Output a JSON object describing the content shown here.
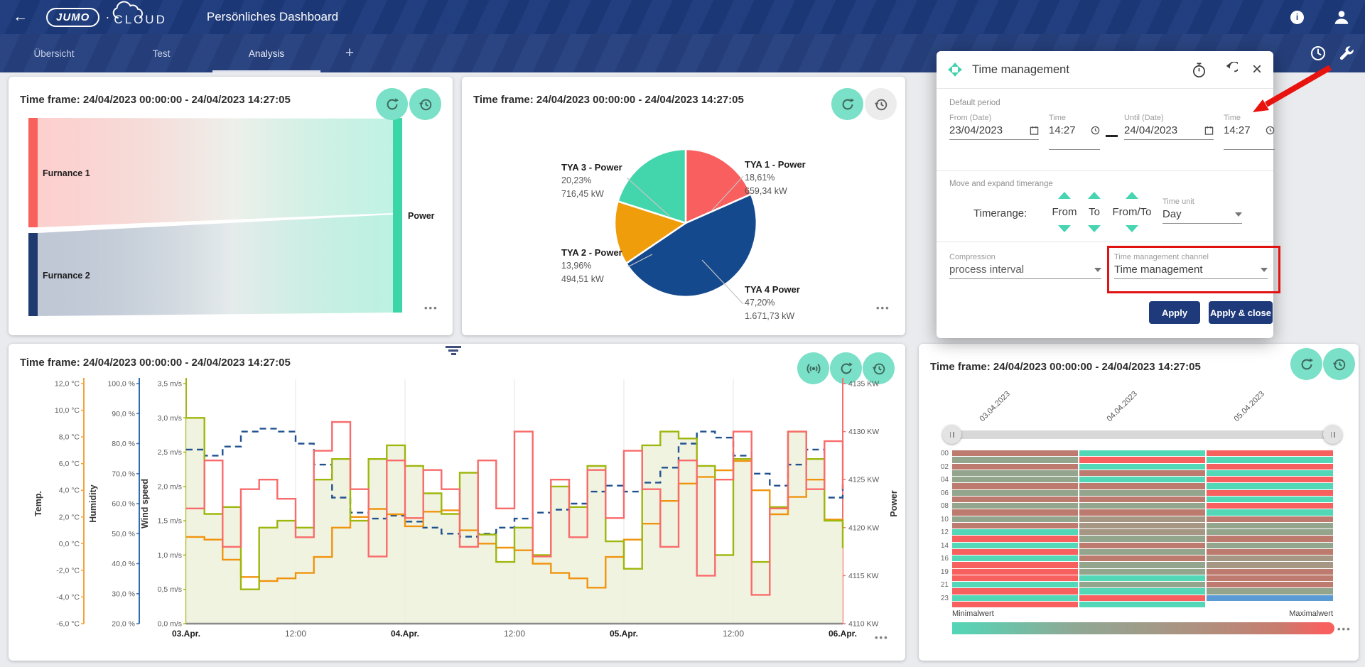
{
  "header": {
    "logo_primary": "JUMO",
    "logo_separator": "·",
    "logo_secondary": "CLOUD",
    "title": "Persönliches Dashboard",
    "icons": [
      "back-arrow-icon",
      "info-icon",
      "account-icon"
    ]
  },
  "tabbar": {
    "tabs": [
      {
        "label": "Übersicht",
        "active": false
      },
      {
        "label": "Test",
        "active": false
      },
      {
        "label": "Analysis",
        "active": true
      }
    ],
    "add_label": "+",
    "icons": [
      "clock-icon",
      "wrench-icon"
    ]
  },
  "cards": {
    "sankey": {
      "title": "Time frame: 24/04/2023 00:00:00 - 24/04/2023 14:27:05",
      "menu_label": "•••",
      "chart_data": {
        "type": "sankey",
        "nodes": {
          "sources": [
            {
              "label": "Furnance 1",
              "color": "#f8615c"
            },
            {
              "label": "Furnance 2",
              "color": "#1e3a6e"
            }
          ],
          "target": {
            "label": "Power",
            "color": "#3bd6a8"
          }
        }
      }
    },
    "pie": {
      "title": "Time frame: 24/04/2023 00:00:00 - 24/04/2023 14:27:05",
      "menu_label": "•••",
      "chart_data": {
        "type": "pie",
        "unit": "kW"
      },
      "slices": [
        {
          "label": "TYA 1 - Power",
          "percent": "18,61%",
          "value": "659,34 kW",
          "pct": 18.61,
          "color": "#f85f5e"
        },
        {
          "label": "TYA 4 Power",
          "percent": "47,20%",
          "value": "1.671,73 kW",
          "pct": 47.2,
          "color": "#15498e"
        },
        {
          "label": "TYA 2 - Power",
          "percent": "13,96%",
          "value": "494,51 kW",
          "pct": 13.96,
          "color": "#f09d0c"
        },
        {
          "label": "TYA 3 - Power",
          "percent": "20,23%",
          "value": "716,45 kW",
          "pct": 20.23,
          "color": "#43d6ac"
        }
      ]
    },
    "line": {
      "title": "Time frame: 24/04/2023 00:00:00 - 24/04/2023 14:27:05",
      "menu_label": "•••",
      "axes": {
        "temp": {
          "label": "Temp.",
          "color": "#f2a33c",
          "ticks": [
            "12,0 °C",
            "10,0 °C",
            "8,0 °C",
            "6,0 °C",
            "4,0 °C",
            "2,0 °C",
            "0,0 °C",
            "-2,0 °C",
            "-4,0 °C",
            "-6,0 °C"
          ]
        },
        "humidity": {
          "label": "Humidity",
          "color": "#2e6db4",
          "ticks": [
            "100,0 %",
            "90,0 %",
            "80,0 %",
            "70,0 %",
            "60,0 %",
            "50,0 %",
            "40,0 %",
            "30,0 %",
            "20,0 %"
          ]
        },
        "wind": {
          "label": "Wind speed",
          "color": "#a2b512",
          "ticks": [
            "3,5 m/s",
            "3,0 m/s",
            "2,5 m/s",
            "2,0 m/s",
            "1,5 m/s",
            "1,0 m/s",
            "0,5 m/s",
            "0,0 m/s"
          ]
        },
        "power": {
          "label": "Power",
          "color": "#f56d6d",
          "ticks": [
            "4135 KW",
            "4130 KW",
            "4125 KW",
            "4120 KW",
            "4115 KW",
            "4110 KW"
          ]
        },
        "x": {
          "ticks": [
            {
              "label": "03.Apr.",
              "bold": true
            },
            {
              "label": "12:00",
              "bold": false
            },
            {
              "label": "04.Apr.",
              "bold": true
            },
            {
              "label": "12:00",
              "bold": false
            },
            {
              "label": "05.Apr.",
              "bold": true
            },
            {
              "label": "12:00",
              "bold": false
            },
            {
              "label": "06.Apr.",
              "bold": true
            }
          ]
        }
      },
      "chart_data": {
        "type": "line",
        "x_start": "03.Apr 00:00",
        "x_end": "06.Apr 00:00",
        "interval_hours": 2,
        "axis_ranges": {
          "temp": [
            -6,
            12
          ],
          "humidity": [
            20,
            100
          ],
          "wind": [
            0,
            3.5
          ],
          "power": [
            4110,
            4135
          ]
        },
        "series": [
          {
            "name": "Humidity",
            "axis": "humidity",
            "color": "#20518f",
            "style": "dashed",
            "values": [
              78,
              76,
              79,
              84,
              85,
              84,
              80,
              73,
              62,
              57,
              55,
              56,
              54,
              52,
              50,
              49,
              50,
              52,
              55,
              57,
              58,
              60,
              64,
              66,
              64,
              67,
              72,
              80,
              84,
              82,
              76,
              70,
              66,
              73,
              78,
              62,
              68
            ]
          },
          {
            "name": "Temp.",
            "axis": "temp",
            "color": "#f0940f",
            "style": "solid",
            "values": [
              0.5,
              0.3,
              -1.2,
              -2.5,
              -2.8,
              -2.6,
              -2.2,
              -1.0,
              1.2,
              2.0,
              2.6,
              2.2,
              1.3,
              2.4,
              2.5,
              1.0,
              0.0,
              -0.3,
              -0.5,
              -1.5,
              -2.2,
              -2.6,
              -3.3,
              -1.0,
              0.3,
              1.5,
              3.2,
              4.5,
              5.0,
              5.5,
              6.2,
              4.0,
              2.2,
              3.5,
              4.8,
              1.8,
              1.2
            ]
          },
          {
            "name": "Wind speed",
            "axis": "wind",
            "color": "#9fb60d",
            "style": "solid",
            "area": true,
            "area_color": "#eff1dc",
            "values": [
              3.0,
              1.6,
              1.7,
              0.5,
              1.4,
              1.5,
              1.4,
              2.1,
              2.4,
              1.5,
              2.4,
              2.6,
              2.3,
              1.9,
              1.6,
              2.2,
              1.3,
              0.9,
              1.4,
              1.0,
              2.0,
              1.7,
              2.3,
              1.2,
              0.8,
              2.6,
              2.8,
              2.7,
              2.3,
              1.0,
              2.4,
              0.9,
              1.7,
              2.8,
              2.4,
              1.5,
              1.1
            ]
          },
          {
            "name": "Power",
            "axis": "power",
            "color": "#f96b6b",
            "style": "solid",
            "values": [
              4122,
              4127,
              4118,
              4124,
              4125,
              4123,
              4119,
              4128,
              4131,
              4124,
              4117,
              4127,
              4121,
              4126,
              4124,
              4118,
              4127,
              4122,
              4130,
              4117,
              4125,
              4119,
              4126,
              4121,
              4128,
              4124,
              4118,
              4127,
              4115,
              4125,
              4130,
              4113,
              4122,
              4130,
              4124,
              4129,
              4124
            ]
          }
        ]
      }
    },
    "heatmap": {
      "title": "Time frame: 24/04/2023 00:00:00 - 24/04/2023 14:27:05",
      "menu_label": "•••",
      "dates": [
        "03.04.2023",
        "04.04.2023",
        "05.04.2023"
      ],
      "hour_labels": [
        "00",
        "02",
        "04",
        "06",
        "08",
        "10",
        "12",
        "14",
        "16",
        "19",
        "21",
        "23"
      ],
      "legend": {
        "min": "Minimalwert",
        "max": "Maximalwert"
      },
      "colors": {
        "t": "#52d7b7",
        "g": "#93a58c",
        "m": "#a59784",
        "r": "#bd7a6e",
        "R": "#f85f5f",
        "b": "#5b9bd5"
      },
      "chart_data": {
        "type": "heatmap",
        "grid": [
          [
            "r",
            "t",
            "R"
          ],
          [
            "g",
            "R",
            "t"
          ],
          [
            "r",
            "t",
            "R"
          ],
          [
            "g",
            "r",
            "t"
          ],
          [
            "g",
            "t",
            "R"
          ],
          [
            "r",
            "r",
            "t"
          ],
          [
            "g",
            "g",
            "R"
          ],
          [
            "r",
            "r",
            "t"
          ],
          [
            "g",
            "g",
            "R"
          ],
          [
            "r",
            "r",
            "t"
          ],
          [
            "g",
            "m",
            "r"
          ],
          [
            "r",
            "m",
            "g"
          ],
          [
            "t",
            "m",
            "g"
          ],
          [
            "R",
            "g",
            "r"
          ],
          [
            "t",
            "r",
            "g"
          ],
          [
            "R",
            "g",
            "r"
          ],
          [
            "t",
            "r",
            "m"
          ],
          [
            "R",
            "g",
            "m"
          ],
          [
            "R",
            "g",
            "r"
          ],
          [
            "R",
            "t",
            "r"
          ],
          [
            "t",
            "g",
            "r"
          ],
          [
            "R",
            "t",
            "g"
          ],
          [
            "t",
            "R",
            "b"
          ],
          [
            "R",
            "t",
            ""
          ]
        ]
      }
    }
  },
  "dialog": {
    "title": "Time management",
    "icons": [
      "move-icon",
      "stopwatch-icon",
      "undo-icon",
      "close-icon"
    ],
    "default_period": {
      "heading": "Default period",
      "from_date": {
        "label": "From (Date)",
        "value": "23/04/2023"
      },
      "from_time": {
        "label": "Time",
        "value": "14:27"
      },
      "until_date": {
        "label": "Until (Date)",
        "value": "24/04/2023"
      },
      "until_time": {
        "label": "Time",
        "value": "14:27"
      }
    },
    "move_expand": {
      "heading": "Move and expand timerange",
      "timerange_label": "Timerange:",
      "options": [
        "From",
        "To",
        "From/To"
      ],
      "time_unit": {
        "label": "Time unit",
        "value": "Day"
      }
    },
    "compression": {
      "label": "Compression",
      "value": "process interval"
    },
    "tm_channel": {
      "label": "Time management channel",
      "value": "Time management"
    },
    "apply_label": "Apply",
    "apply_close_label": "Apply & close"
  },
  "annotations": {
    "highlight_color": "#e01312",
    "arrow_color": "#e8120e"
  }
}
